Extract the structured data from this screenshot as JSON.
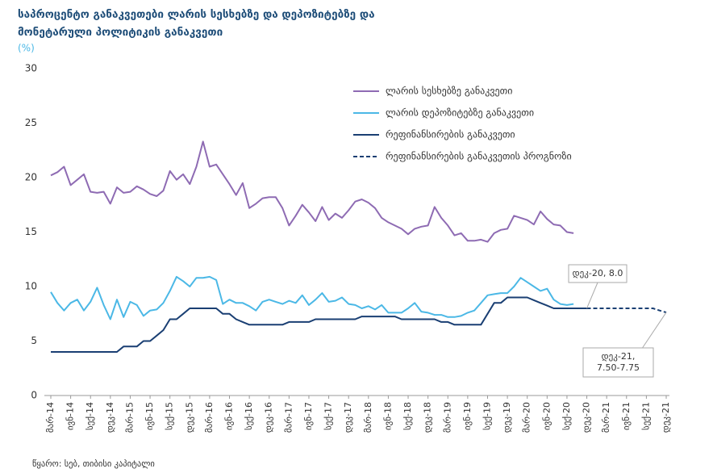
{
  "chart_data": {
    "type": "line",
    "title": [
      "საპროცენტო განაკვეთები ლარის სესხებზე და დეპოზიტებზე და",
      "მონეტარული პოლიტიკის განაკვეთი"
    ],
    "y_unit": "(%)",
    "source": "წყარო: სებ, თიბისი კაპიტალი",
    "categories": [
      "მარ-14",
      null,
      null,
      "ივნ-14",
      null,
      null,
      "სექ-14",
      null,
      null,
      "დეკ-14",
      null,
      null,
      "მარ-15",
      null,
      null,
      "ივნ-15",
      null,
      null,
      "სექ-15",
      null,
      null,
      "დეკ-15",
      null,
      null,
      "მარ-16",
      null,
      null,
      "ივნ-16",
      null,
      null,
      "სექ-16",
      null,
      null,
      "დეკ-16",
      null,
      null,
      "მარ-17",
      null,
      null,
      "ივნ-17",
      null,
      null,
      "სექ-17",
      null,
      null,
      "დეკ-17",
      null,
      null,
      "მარ-18",
      null,
      null,
      "ივნ-18",
      null,
      null,
      "სექ-18",
      null,
      null,
      "დეკ-18",
      null,
      null,
      "მარ-19",
      null,
      null,
      "ივნ-19",
      null,
      null,
      "სექ-19",
      null,
      null,
      "დეკ-19",
      null,
      null,
      "მარ-20",
      null,
      null,
      "ივნ-20",
      null,
      null,
      "სექ-20",
      null,
      null,
      "დეკ-20",
      null,
      null,
      "მარ-21",
      null,
      null,
      "ივნ-21",
      null,
      null,
      "სექ-21",
      null,
      null,
      "დეკ-21"
    ],
    "series": [
      {
        "name": "ლარის სესხებზე განაკვეთი",
        "color": "#8e6bb3",
        "dashed": false,
        "values": [
          20.2,
          20.5,
          21.0,
          19.3,
          19.8,
          20.3,
          18.7,
          18.6,
          18.7,
          17.6,
          19.1,
          18.6,
          18.7,
          19.2,
          18.9,
          18.5,
          18.3,
          18.8,
          20.6,
          19.8,
          20.3,
          19.4,
          21.0,
          23.3,
          21.0,
          21.2,
          20.3,
          19.4,
          18.4,
          19.5,
          17.2,
          17.6,
          18.1,
          18.2,
          18.2,
          17.2,
          15.6,
          16.5,
          17.5,
          16.8,
          16.0,
          17.3,
          16.1,
          16.7,
          16.3,
          17.0,
          17.8,
          18.0,
          17.7,
          17.2,
          16.3,
          15.9,
          15.6,
          15.3,
          14.8,
          15.3,
          15.5,
          15.6,
          17.3,
          16.3,
          15.6,
          14.7,
          14.9,
          14.2,
          14.2,
          14.3,
          14.1,
          14.9,
          15.2,
          15.3,
          16.5,
          16.3,
          16.1,
          15.7,
          16.9,
          16.2,
          15.7,
          15.6,
          15.0,
          14.9,
          null,
          null,
          null,
          null,
          null,
          null,
          null,
          null,
          null,
          null,
          null,
          null,
          null,
          null
        ]
      },
      {
        "name": "ლარის დეპოზიტებზე განაკვეთი",
        "color": "#4bb8e6",
        "dashed": false,
        "values": [
          9.5,
          8.5,
          7.8,
          8.5,
          8.8,
          7.8,
          8.6,
          9.9,
          8.3,
          7.0,
          8.8,
          7.2,
          8.6,
          8.3,
          7.3,
          7.8,
          7.9,
          8.5,
          9.6,
          10.9,
          10.5,
          10.0,
          10.8,
          10.8,
          10.9,
          10.6,
          8.4,
          8.8,
          8.5,
          8.5,
          8.2,
          7.8,
          8.6,
          8.8,
          8.6,
          8.4,
          8.7,
          8.5,
          9.2,
          8.3,
          8.8,
          9.4,
          8.6,
          8.7,
          9.0,
          8.4,
          8.3,
          8.0,
          8.2,
          7.9,
          8.3,
          7.6,
          7.6,
          7.6,
          8.0,
          8.5,
          7.7,
          7.6,
          7.4,
          7.4,
          7.2,
          7.2,
          7.3,
          7.6,
          7.8,
          8.5,
          9.2,
          9.3,
          9.4,
          9.4,
          10.0,
          10.8,
          10.4,
          10.0,
          9.6,
          9.8,
          8.8,
          8.4,
          8.3,
          8.4,
          null,
          null,
          null,
          null,
          null,
          null,
          null,
          null,
          null,
          null,
          null,
          null,
          null,
          null
        ]
      },
      {
        "name": "რეფინანსირების განაკვეთი",
        "color": "#1a3f73",
        "dashed": false,
        "values": [
          4.0,
          4.0,
          4.0,
          4.0,
          4.0,
          4.0,
          4.0,
          4.0,
          4.0,
          4.0,
          4.0,
          4.5,
          4.5,
          4.5,
          5.0,
          5.0,
          5.5,
          6.0,
          7.0,
          7.0,
          7.5,
          8.0,
          8.0,
          8.0,
          8.0,
          8.0,
          7.5,
          7.5,
          7.0,
          6.75,
          6.5,
          6.5,
          6.5,
          6.5,
          6.5,
          6.5,
          6.75,
          6.75,
          6.75,
          6.75,
          7.0,
          7.0,
          7.0,
          7.0,
          7.0,
          7.0,
          7.0,
          7.25,
          7.25,
          7.25,
          7.25,
          7.25,
          7.25,
          7.0,
          7.0,
          7.0,
          7.0,
          7.0,
          7.0,
          6.75,
          6.75,
          6.5,
          6.5,
          6.5,
          6.5,
          6.5,
          7.5,
          8.5,
          8.5,
          9.0,
          9.0,
          9.0,
          9.0,
          8.75,
          8.5,
          8.25,
          8.0,
          8.0,
          8.0,
          8.0,
          8.0,
          8.0,
          null,
          null,
          null,
          null,
          null,
          null,
          null,
          null,
          null,
          null,
          null,
          null
        ]
      },
      {
        "name": "რეფინანსირების განაკვეთის პროგნოზი",
        "color": "#1a3f73",
        "dashed": true,
        "values": [
          null,
          null,
          null,
          null,
          null,
          null,
          null,
          null,
          null,
          null,
          null,
          null,
          null,
          null,
          null,
          null,
          null,
          null,
          null,
          null,
          null,
          null,
          null,
          null,
          null,
          null,
          null,
          null,
          null,
          null,
          null,
          null,
          null,
          null,
          null,
          null,
          null,
          null,
          null,
          null,
          null,
          null,
          null,
          null,
          null,
          null,
          null,
          null,
          null,
          null,
          null,
          null,
          null,
          null,
          null,
          null,
          null,
          null,
          null,
          null,
          null,
          null,
          null,
          null,
          null,
          null,
          null,
          null,
          null,
          null,
          null,
          null,
          null,
          null,
          null,
          null,
          null,
          null,
          null,
          null,
          null,
          8.0,
          8.0,
          8.0,
          8.0,
          8.0,
          8.0,
          8.0,
          8.0,
          8.0,
          8.0,
          8.0,
          7.8,
          7.625
        ]
      }
    ],
    "annotations": [
      {
        "lines": [
          "დეკ-20, 8.0"
        ]
      },
      {
        "lines": [
          "დეკ-21,",
          "7.50-7.75"
        ]
      }
    ],
    "ylim": [
      0,
      30
    ],
    "yticks": [
      0,
      5,
      10,
      15,
      20,
      25,
      30
    ],
    "grid": false
  }
}
